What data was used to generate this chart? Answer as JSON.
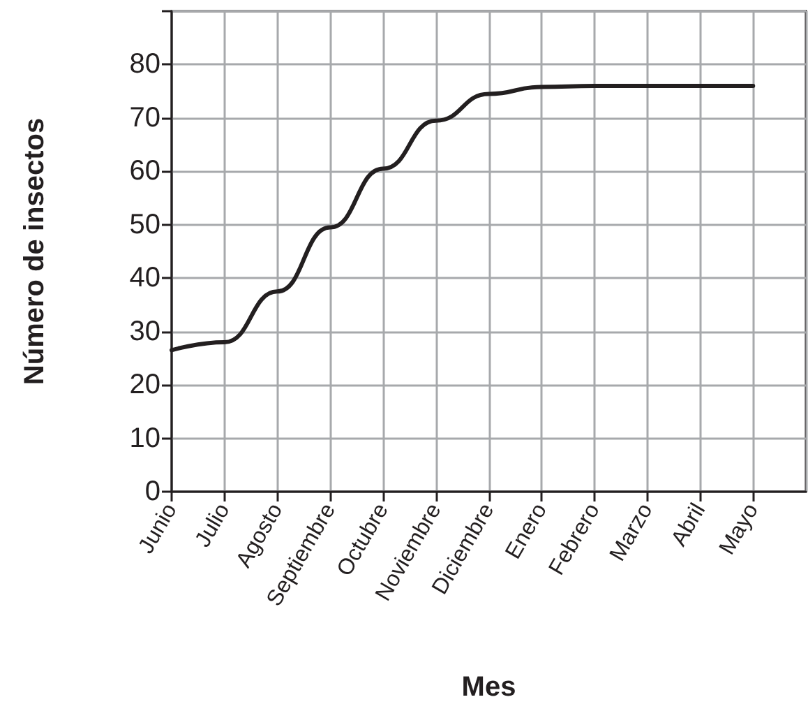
{
  "chart_data": {
    "type": "line",
    "xlabel": "Mes",
    "ylabel": "Número de insectos",
    "categories": [
      "Junio",
      "Julio",
      "Agosto",
      "Septiembre",
      "Octubre",
      "Noviembre",
      "Diciembre",
      "Enero",
      "Febrero",
      "Marzo",
      "Abril",
      "Mayo",
      null
    ],
    "series": [
      {
        "color": "#231f20",
        "values": [
          26.5,
          28,
          37.5,
          49.5,
          60.5,
          69.5,
          74.5,
          75.8,
          76,
          76,
          76,
          76,
          null
        ]
      }
    ],
    "ylim": [
      0,
      90
    ],
    "yticks": [
      0,
      10,
      20,
      30,
      40,
      50,
      60,
      70,
      80,
      {
        "value": 90,
        "label": null
      }
    ],
    "grid": true,
    "marker": "none",
    "line_style": "solid"
  }
}
